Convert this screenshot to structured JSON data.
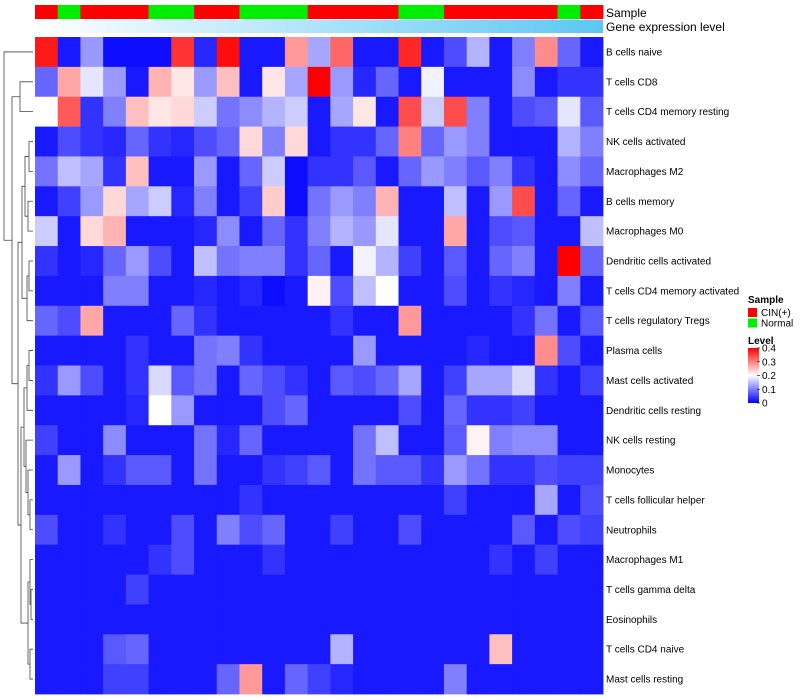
{
  "chart_data": {
    "type": "heatmap",
    "title": "",
    "sample_track_label": "Sample",
    "gene_track_label": "Gene expression level",
    "columns_sample_group": [
      "CIN(+)",
      "Normal",
      "CIN(+)",
      "CIN(+)",
      "CIN(+)",
      "Normal",
      "Normal",
      "CIN(+)",
      "CIN(+)",
      "Normal",
      "Normal",
      "Normal",
      "CIN(+)",
      "CIN(+)",
      "CIN(+)",
      "CIN(+)",
      "Normal",
      "Normal",
      "CIN(+)",
      "CIN(+)",
      "CIN(+)",
      "CIN(+)",
      "CIN(+)",
      "Normal",
      "CIN(+)"
    ],
    "rows": [
      {
        "label": "B cells naive",
        "values": [
          0.38,
          0.02,
          0.12,
          0.01,
          0.01,
          0.01,
          0.36,
          0.03,
          0.39,
          0.02,
          0.02,
          0.28,
          0.13,
          0.32,
          0.02,
          0.02,
          0.37,
          0.02,
          0.06,
          0.14,
          0.02,
          0.1,
          0.29,
          0.08,
          0.02
        ]
      },
      {
        "label": "T cells CD8",
        "values": [
          0.08,
          0.27,
          0.18,
          0.12,
          0.02,
          0.26,
          0.22,
          0.12,
          0.25,
          0.02,
          0.22,
          0.13,
          0.4,
          0.12,
          0.03,
          0.08,
          0.02,
          0.19,
          0.02,
          0.02,
          0.02,
          0.11,
          0.02,
          0.04,
          0.04
        ]
      },
      {
        "label": "T cells CD4 memory resting",
        "values": [
          0.2,
          0.33,
          0.04,
          0.1,
          0.25,
          0.22,
          0.23,
          0.16,
          0.09,
          0.11,
          0.14,
          0.16,
          0.02,
          0.13,
          0.22,
          0.02,
          0.34,
          0.16,
          0.34,
          0.1,
          0.02,
          0.06,
          0.07,
          0.18,
          0.07
        ]
      },
      {
        "label": "NK cells activated",
        "values": [
          0.02,
          0.06,
          0.04,
          0.03,
          0.08,
          0.04,
          0.03,
          0.06,
          0.08,
          0.23,
          0.1,
          0.23,
          0.02,
          0.04,
          0.04,
          0.08,
          0.3,
          0.08,
          0.12,
          0.1,
          0.02,
          0.02,
          0.02,
          0.14,
          0.1
        ]
      },
      {
        "label": "Macrophages M2",
        "values": [
          0.09,
          0.15,
          0.13,
          0.04,
          0.25,
          0.02,
          0.02,
          0.12,
          0.02,
          0.08,
          0.16,
          0.01,
          0.04,
          0.04,
          0.07,
          0.02,
          0.08,
          0.12,
          0.1,
          0.07,
          0.1,
          0.04,
          0.02,
          0.11,
          0.08
        ]
      },
      {
        "label": "B cells memory",
        "values": [
          0.02,
          0.05,
          0.12,
          0.23,
          0.13,
          0.16,
          0.03,
          0.1,
          0.02,
          0.05,
          0.24,
          0.01,
          0.09,
          0.12,
          0.1,
          0.26,
          0.02,
          0.02,
          0.15,
          0.02,
          0.12,
          0.34,
          0.02,
          0.08,
          0.02
        ]
      },
      {
        "label": "Macrophages M0",
        "values": [
          0.16,
          0.02,
          0.23,
          0.26,
          0.02,
          0.02,
          0.02,
          0.03,
          0.11,
          0.02,
          0.08,
          0.04,
          0.1,
          0.14,
          0.12,
          0.18,
          0.02,
          0.02,
          0.27,
          0.02,
          0.06,
          0.07,
          0.02,
          0.02,
          0.15
        ]
      },
      {
        "label": "Dendritic cells activated",
        "values": [
          0.04,
          0.02,
          0.03,
          0.08,
          0.12,
          0.06,
          0.02,
          0.15,
          0.09,
          0.1,
          0.1,
          0.04,
          0.08,
          0.02,
          0.19,
          0.14,
          0.05,
          0.02,
          0.07,
          0.02,
          0.08,
          0.1,
          0.02,
          0.4,
          0.08
        ]
      },
      {
        "label": "T cells CD4 memory activated",
        "values": [
          0.02,
          0.02,
          0.02,
          0.1,
          0.1,
          0.02,
          0.02,
          0.03,
          0.02,
          0.03,
          0.01,
          0.02,
          0.21,
          0.06,
          0.15,
          0.2,
          0.02,
          0.02,
          0.06,
          0.02,
          0.04,
          0.03,
          0.02,
          0.1,
          0.02
        ]
      },
      {
        "label": "T cells regulatory  Tregs",
        "values": [
          0.08,
          0.06,
          0.27,
          0.02,
          0.02,
          0.02,
          0.08,
          0.04,
          0.02,
          0.02,
          0.02,
          0.02,
          0.02,
          0.04,
          0.02,
          0.02,
          0.28,
          0.02,
          0.02,
          0.02,
          0.02,
          0.04,
          0.09,
          0.02,
          0.07
        ]
      },
      {
        "label": "Plasma cells",
        "values": [
          0.02,
          0.02,
          0.02,
          0.02,
          0.04,
          0.02,
          0.02,
          0.09,
          0.1,
          0.04,
          0.02,
          0.02,
          0.02,
          0.02,
          0.12,
          0.02,
          0.02,
          0.02,
          0.02,
          0.03,
          0.02,
          0.02,
          0.29,
          0.06,
          0.02
        ]
      },
      {
        "label": "Mast cells activated",
        "values": [
          0.04,
          0.12,
          0.06,
          0.02,
          0.04,
          0.17,
          0.07,
          0.09,
          0.02,
          0.08,
          0.06,
          0.04,
          0.02,
          0.07,
          0.06,
          0.08,
          0.13,
          0.02,
          0.05,
          0.13,
          0.13,
          0.17,
          0.04,
          0.02,
          0.05
        ]
      },
      {
        "label": "Dendritic cells resting",
        "values": [
          0.02,
          0.02,
          0.02,
          0.02,
          0.03,
          0.2,
          0.12,
          0.02,
          0.02,
          0.02,
          0.06,
          0.08,
          0.02,
          0.02,
          0.02,
          0.02,
          0.06,
          0.02,
          0.08,
          0.04,
          0.04,
          0.05,
          0.02,
          0.02,
          0.02
        ]
      },
      {
        "label": "NK cells resting",
        "values": [
          0.05,
          0.02,
          0.02,
          0.11,
          0.02,
          0.02,
          0.02,
          0.09,
          0.03,
          0.08,
          0.02,
          0.02,
          0.02,
          0.02,
          0.09,
          0.15,
          0.02,
          0.02,
          0.07,
          0.21,
          0.1,
          0.11,
          0.11,
          0.02,
          0.02
        ]
      },
      {
        "label": "Monocytes",
        "values": [
          0.02,
          0.12,
          0.02,
          0.04,
          0.07,
          0.07,
          0.02,
          0.09,
          0.02,
          0.02,
          0.04,
          0.05,
          0.07,
          0.02,
          0.09,
          0.07,
          0.07,
          0.04,
          0.12,
          0.09,
          0.04,
          0.04,
          0.06,
          0.05,
          0.05
        ]
      },
      {
        "label": "T cells follicular helper",
        "values": [
          0.02,
          0.02,
          0.02,
          0.02,
          0.02,
          0.02,
          0.02,
          0.02,
          0.02,
          0.04,
          0.02,
          0.02,
          0.02,
          0.02,
          0.02,
          0.02,
          0.02,
          0.02,
          0.05,
          0.02,
          0.02,
          0.02,
          0.13,
          0.02,
          0.06
        ]
      },
      {
        "label": "Neutrophils",
        "values": [
          0.06,
          0.02,
          0.02,
          0.04,
          0.02,
          0.02,
          0.06,
          0.02,
          0.1,
          0.06,
          0.08,
          0.02,
          0.02,
          0.05,
          0.02,
          0.02,
          0.06,
          0.02,
          0.02,
          0.02,
          0.02,
          0.07,
          0.02,
          0.06,
          0.05
        ]
      },
      {
        "label": "Macrophages M1",
        "values": [
          0.02,
          0.02,
          0.02,
          0.02,
          0.02,
          0.04,
          0.06,
          0.02,
          0.02,
          0.02,
          0.04,
          0.02,
          0.02,
          0.02,
          0.02,
          0.02,
          0.02,
          0.02,
          0.02,
          0.02,
          0.04,
          0.02,
          0.05,
          0.02,
          0.02
        ]
      },
      {
        "label": "T cells gamma delta",
        "values": [
          0.02,
          0.02,
          0.02,
          0.02,
          0.05,
          0.02,
          0.02,
          0.02,
          0.02,
          0.02,
          0.02,
          0.02,
          0.02,
          0.02,
          0.02,
          0.02,
          0.02,
          0.02,
          0.02,
          0.02,
          0.02,
          0.02,
          0.02,
          0.02,
          0.02
        ]
      },
      {
        "label": "Eosinophils",
        "values": [
          0.02,
          0.02,
          0.02,
          0.02,
          0.02,
          0.02,
          0.02,
          0.02,
          0.02,
          0.02,
          0.02,
          0.02,
          0.02,
          0.02,
          0.02,
          0.02,
          0.02,
          0.02,
          0.02,
          0.02,
          0.02,
          0.02,
          0.02,
          0.02,
          0.02
        ]
      },
      {
        "label": "T cells CD4 naive",
        "values": [
          0.02,
          0.02,
          0.02,
          0.07,
          0.08,
          0.02,
          0.02,
          0.02,
          0.02,
          0.02,
          0.02,
          0.02,
          0.02,
          0.14,
          0.02,
          0.02,
          0.02,
          0.02,
          0.02,
          0.02,
          0.25,
          0.02,
          0.02,
          0.02,
          0.02
        ]
      },
      {
        "label": "Mast cells resting",
        "values": [
          0.02,
          0.02,
          0.02,
          0.05,
          0.05,
          0.02,
          0.02,
          0.02,
          0.08,
          0.28,
          0.02,
          0.08,
          0.05,
          0.03,
          0.02,
          0.02,
          0.02,
          0.02,
          0.1,
          0.02,
          0.02,
          0.02,
          0.02,
          0.02,
          0.02
        ]
      }
    ],
    "legend": {
      "sample_title": "Sample",
      "sample_entries": [
        {
          "label": "CIN(+)",
          "color": "#FF0000"
        },
        {
          "label": "Normal",
          "color": "#00EE00"
        }
      ],
      "level_title": "Level",
      "level_ticks": [
        {
          "value": 0.4,
          "label": "0.4"
        },
        {
          "value": 0.3,
          "label": "0.3"
        },
        {
          "value": 0.2,
          "label": "0.2"
        },
        {
          "value": 0.1,
          "label": "0.1"
        },
        {
          "value": 0,
          "label": "0"
        }
      ],
      "level_range": [
        0,
        0.4
      ]
    },
    "colors": {
      "low": "#0000FF",
      "mid": "#FFFFFF",
      "high": "#FF0000",
      "mid_value": 0.2,
      "gene_track": "#5BC8F2",
      "dendrogram": "#444444"
    }
  }
}
